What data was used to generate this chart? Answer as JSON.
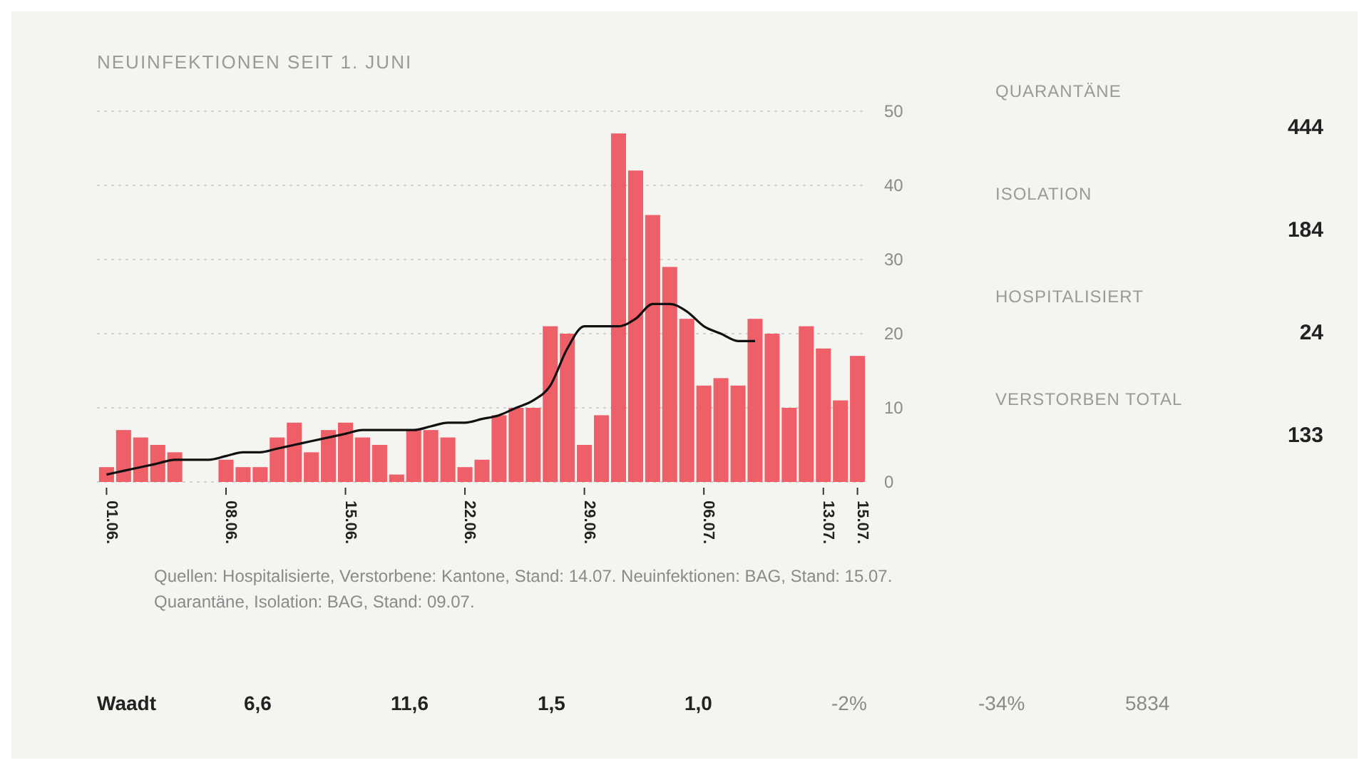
{
  "chart_data": [
    {
      "type": "bar",
      "title": "NEUINFEKTIONEN SEIT 1. JUNI",
      "categories": [
        "01.06.",
        null,
        null,
        null,
        null,
        null,
        null,
        "08.06.",
        null,
        null,
        null,
        null,
        null,
        null,
        "15.06.",
        null,
        null,
        null,
        null,
        null,
        null,
        "22.06.",
        null,
        null,
        null,
        null,
        null,
        null,
        "29.06.",
        null,
        null,
        null,
        null,
        null,
        null,
        "06.07.",
        null,
        null,
        null,
        null,
        null,
        null,
        "13.07.",
        null,
        "15.07."
      ],
      "series": [
        {
          "type": "bar",
          "color": "#ef5f68",
          "values": [
            2,
            7,
            6,
            5,
            4,
            0,
            0,
            3,
            2,
            2,
            6,
            8,
            4,
            7,
            8,
            6,
            5,
            1,
            7,
            7,
            6,
            2,
            3,
            9,
            10,
            10,
            21,
            20,
            5,
            9,
            47,
            42,
            36,
            29,
            22,
            13,
            14,
            13,
            22,
            20,
            10,
            21,
            18,
            11,
            17
          ]
        },
        {
          "type": "line",
          "color": "#111111",
          "values": [
            1,
            1.5,
            2,
            2.5,
            3,
            3,
            3,
            3.5,
            4,
            4,
            4.5,
            5,
            5.5,
            6,
            6.5,
            7,
            7,
            7,
            7,
            7.5,
            8,
            8,
            8.5,
            9,
            10,
            11,
            13,
            18,
            21,
            21,
            21,
            22,
            24,
            24,
            23,
            21,
            20,
            19,
            19,
            null,
            null,
            null,
            null,
            null,
            null
          ]
        }
      ],
      "ylim": [
        0,
        50
      ],
      "yticks": [
        0,
        10,
        20,
        30,
        40,
        50
      ],
      "grid": "y",
      "marker": "none",
      "annotations": [
        "Quellen: Hospitalisierte, Verstorbene: Kantone, Stand: 14.07. Neuinfektionen: BAG, Stand: 15.07.",
        "Quarantäne, Isolation: BAG, Stand: 09.07."
      ]
    },
    {
      "type": "other",
      "annotations": [
        "QUARANTÄNE",
        "444",
        "ISOLATION",
        "184",
        "HOSPITALISIERT",
        "24",
        "VERSTORBEN TOTAL",
        "133"
      ]
    },
    {
      "type": "other",
      "annotations": [
        "Waadt",
        "6,6",
        "11,6",
        "1,5",
        "1,0",
        "-2%",
        "-34%",
        "5834"
      ]
    }
  ]
}
